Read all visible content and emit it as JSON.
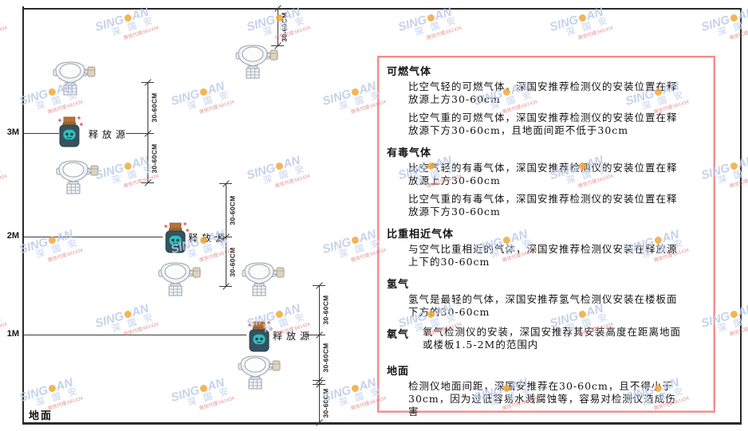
{
  "diagram": {
    "height_labels": [
      "3M",
      "2M",
      "1M"
    ],
    "ground_label": "地面",
    "release_source_label": "释放源",
    "dimension_label": "30-60CM",
    "colors": {
      "frame": "#2a2a2a",
      "panel_border": "#f28f8f",
      "source_body": "#35525e",
      "source_cap": "#c4783a",
      "source_face": "#35bfbf",
      "detector_stroke": "#9aa2ac"
    }
  },
  "panel": {
    "sections": [
      {
        "heading": "可燃气体",
        "paragraphs": [
          "比空气轻的可燃气体，深国安推荐检测仪的安装位置在释放源上方30-60cm",
          "比空气重的可燃气体，深国安推荐检测仪的安装位置在释放源下方30-60cm，且地面间距不低于30cm"
        ]
      },
      {
        "heading": "有毒气体",
        "paragraphs": [
          "比空气轻的有毒气体，深国安推荐检测仪的安装位置在释放源上方30-60cm",
          "比空气重的有毒气体，深国安推荐检测仪的安装位置在释放源下方30-60cm"
        ]
      },
      {
        "heading": "比重相近气体",
        "paragraphs": [
          "与空气比重相近的气体，深国安推荐检测仪安装在释放源上下的30-60cm"
        ]
      },
      {
        "heading": "氢气",
        "paragraphs": [
          "氢气是最轻的气体，深国安推荐氢气检测仪安装在楼板面下方的30-60cm"
        ]
      },
      {
        "heading": "氧气",
        "paragraphs": [
          "氧气检测仪的安装，深国安推荐其安装高度在距离地面或楼板1.5-2M的范围内"
        ]
      },
      {
        "heading": "地面",
        "paragraphs": [
          "检测仪地面间距，深国安推荐在30-60cm，且不得小于30cm，因为过低容易水溅腐蚀等，容易对检测仪造成伤害"
        ]
      }
    ]
  },
  "watermark": {
    "brand": "SING",
    "brand2": "AN",
    "cn": "深 国 安",
    "sub": "微信代理:661434"
  }
}
